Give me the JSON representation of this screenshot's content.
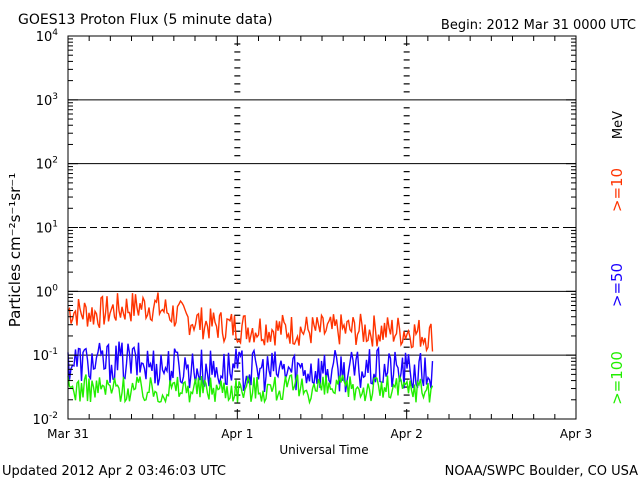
{
  "header": {
    "title": "GOES13 Proton Flux (5 minute data)",
    "begin": "Begin: 2012 Mar 31 0000 UTC"
  },
  "footer": {
    "updated": "Updated 2012 Apr  2 03:46:03 UTC",
    "source": "NOAA/SWPC Boulder, CO USA"
  },
  "chart_data": {
    "type": "line",
    "title": "GOES13 Proton Flux (5 minute data)",
    "xlabel": "Universal Time",
    "ylabel": "Particles cm⁻²s⁻¹sr⁻¹",
    "y_scale": "log",
    "ylim": [
      0.01,
      10000
    ],
    "y_ticks": [
      {
        "base": "10",
        "exp": "-2"
      },
      {
        "base": "10",
        "exp": "-1"
      },
      {
        "base": "10",
        "exp": "0"
      },
      {
        "base": "10",
        "exp": "1"
      },
      {
        "base": "10",
        "exp": "2"
      },
      {
        "base": "10",
        "exp": "3"
      },
      {
        "base": "10",
        "exp": "4"
      }
    ],
    "x_ticks": [
      "Mar 31",
      "Apr 1",
      "Apr 2",
      "Apr 3"
    ],
    "x_range": [
      "2012-03-31T00:00",
      "2012-04-03T00:00"
    ],
    "reference_lines": [
      {
        "value": 0.1,
        "style": "solid"
      },
      {
        "value": 1,
        "style": "solid"
      },
      {
        "value": 10,
        "style": "dashed"
      },
      {
        "value": 100,
        "style": "solid"
      },
      {
        "value": 1000,
        "style": "solid"
      }
    ],
    "unit_label": "MeV",
    "series": [
      {
        "name": ">=10",
        "color": "#ff3300",
        "x": [
          "2012-03-31T00:00",
          "2012-03-31T04:00",
          "2012-03-31T08:00",
          "2012-03-31T12:00",
          "2012-03-31T16:00",
          "2012-03-31T20:00",
          "2012-04-01T00:00",
          "2012-04-01T04:00",
          "2012-04-01T08:00",
          "2012-04-01T12:00",
          "2012-04-01T16:00",
          "2012-04-01T20:00",
          "2012-04-02T00:00",
          "2012-04-02T03:45"
        ],
        "values": [
          0.5,
          0.45,
          0.55,
          0.6,
          0.4,
          0.3,
          0.28,
          0.26,
          0.25,
          0.24,
          0.25,
          0.24,
          0.24,
          0.2
        ]
      },
      {
        "name": ">=50",
        "color": "#1a00ff",
        "x": [
          "2012-03-31T00:00",
          "2012-03-31T04:00",
          "2012-03-31T08:00",
          "2012-03-31T12:00",
          "2012-03-31T16:00",
          "2012-03-31T20:00",
          "2012-04-01T00:00",
          "2012-04-01T04:00",
          "2012-04-01T08:00",
          "2012-04-01T12:00",
          "2012-04-01T16:00",
          "2012-04-01T20:00",
          "2012-04-02T00:00",
          "2012-04-02T03:45"
        ],
        "values": [
          0.08,
          0.075,
          0.08,
          0.07,
          0.065,
          0.06,
          0.06,
          0.055,
          0.06,
          0.06,
          0.055,
          0.06,
          0.055,
          0.05
        ]
      },
      {
        "name": ">=100",
        "color": "#22ee00",
        "x": [
          "2012-03-31T00:00",
          "2012-03-31T04:00",
          "2012-03-31T08:00",
          "2012-03-31T12:00",
          "2012-03-31T16:00",
          "2012-03-31T20:00",
          "2012-04-01T00:00",
          "2012-04-01T04:00",
          "2012-04-01T08:00",
          "2012-04-01T12:00",
          "2012-04-01T16:00",
          "2012-04-01T20:00",
          "2012-04-02T00:00",
          "2012-04-02T03:45"
        ],
        "values": [
          0.03,
          0.03,
          0.03,
          0.028,
          0.03,
          0.03,
          0.03,
          0.03,
          0.03,
          0.03,
          0.03,
          0.03,
          0.03,
          0.03
        ]
      }
    ]
  }
}
